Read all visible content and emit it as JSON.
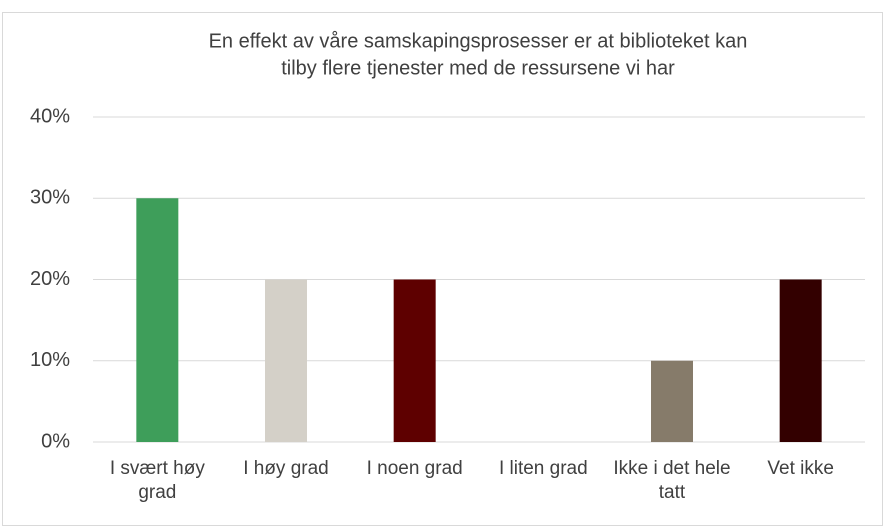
{
  "chart_data": {
    "type": "bar",
    "title": [
      "En effekt av våre samskapingsprosesser er at biblioteket kan",
      "tilby flere tjenester med de ressursene vi har"
    ],
    "categories": [
      "I svært høy grad",
      "I høy grad",
      "I noen grad",
      "I liten grad",
      "Ikke i det hele tatt",
      "Vet ikke"
    ],
    "values": [
      30,
      20,
      20,
      0,
      10,
      20
    ],
    "colors": [
      "#3e9e5a",
      "#d4d0c8",
      "#5e0000",
      "#a09a8c",
      "#867b6a",
      "#330000"
    ],
    "ylim": [
      0,
      40
    ],
    "yticks": [
      {
        "value": 0,
        "label": "0%"
      },
      {
        "value": 10,
        "label": "10%"
      },
      {
        "value": 20,
        "label": "20%"
      },
      {
        "value": 30,
        "label": "30%"
      },
      {
        "value": 40,
        "label": "40%"
      }
    ],
    "grid": true
  }
}
